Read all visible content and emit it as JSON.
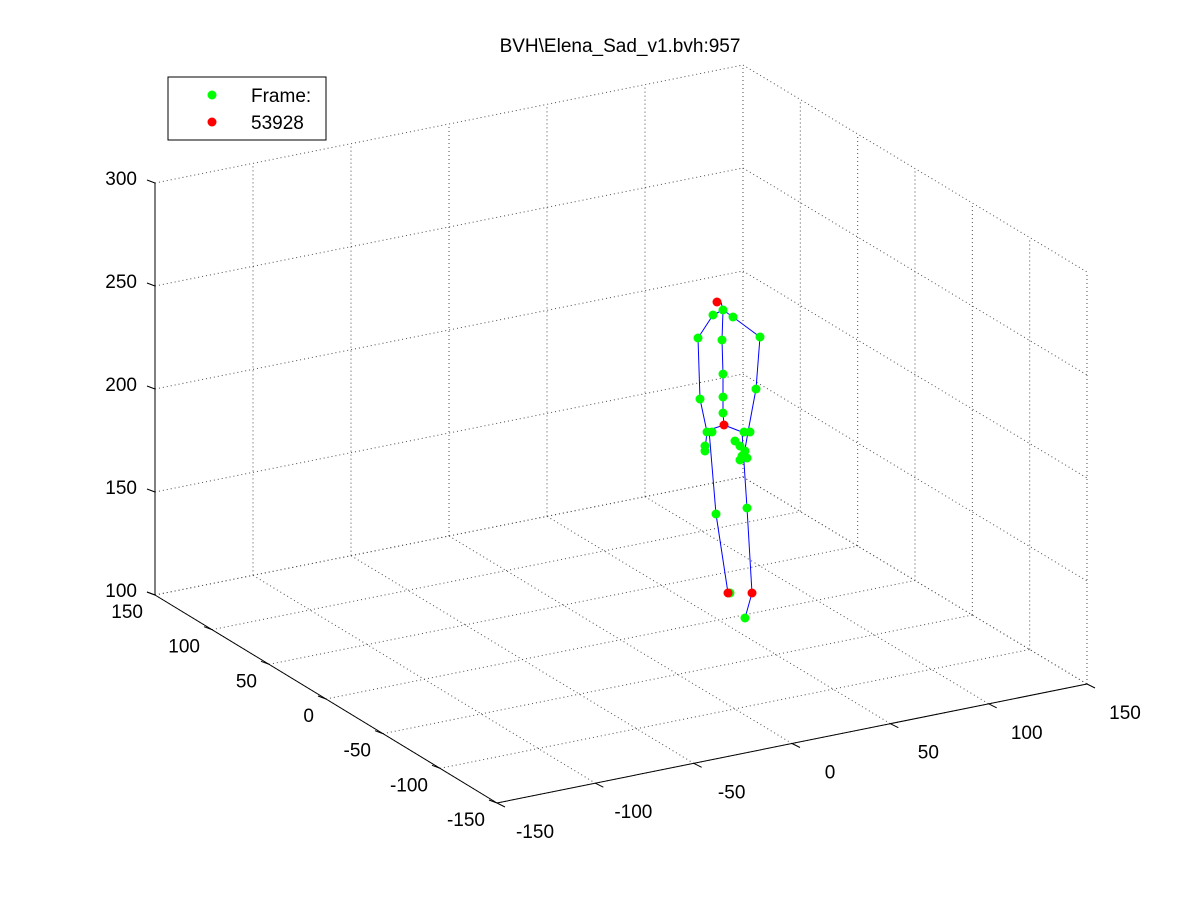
{
  "chart_data": {
    "type": "scatter",
    "title": "BVH\\Elena_Sad_v1.bvh:957",
    "legend": {
      "placement": "top-left",
      "entries": [
        {
          "label": "Frame:",
          "color": "#00ff00"
        },
        {
          "label": "53928",
          "color": "#ff0000"
        }
      ]
    },
    "axes": {
      "x_ticks": [
        "-150",
        "-100",
        "-50",
        "0",
        "50",
        "100",
        "150"
      ],
      "y_ticks": [
        "150",
        "100",
        "50",
        "0",
        "-50",
        "-100",
        "-150"
      ],
      "z_ticks": [
        "300",
        "250",
        "200",
        "150",
        "100"
      ],
      "xlim": [
        -150,
        150
      ],
      "ylim": [
        -150,
        150
      ],
      "zlim": [
        100,
        300
      ],
      "grid": true,
      "box": "3d-box-dotted"
    },
    "colors": {
      "joint": "#00ff00",
      "root_joint": "#ff0000",
      "bone": "#0000ff",
      "axis": "#000000",
      "grid": "#4d4d4d"
    }
  }
}
